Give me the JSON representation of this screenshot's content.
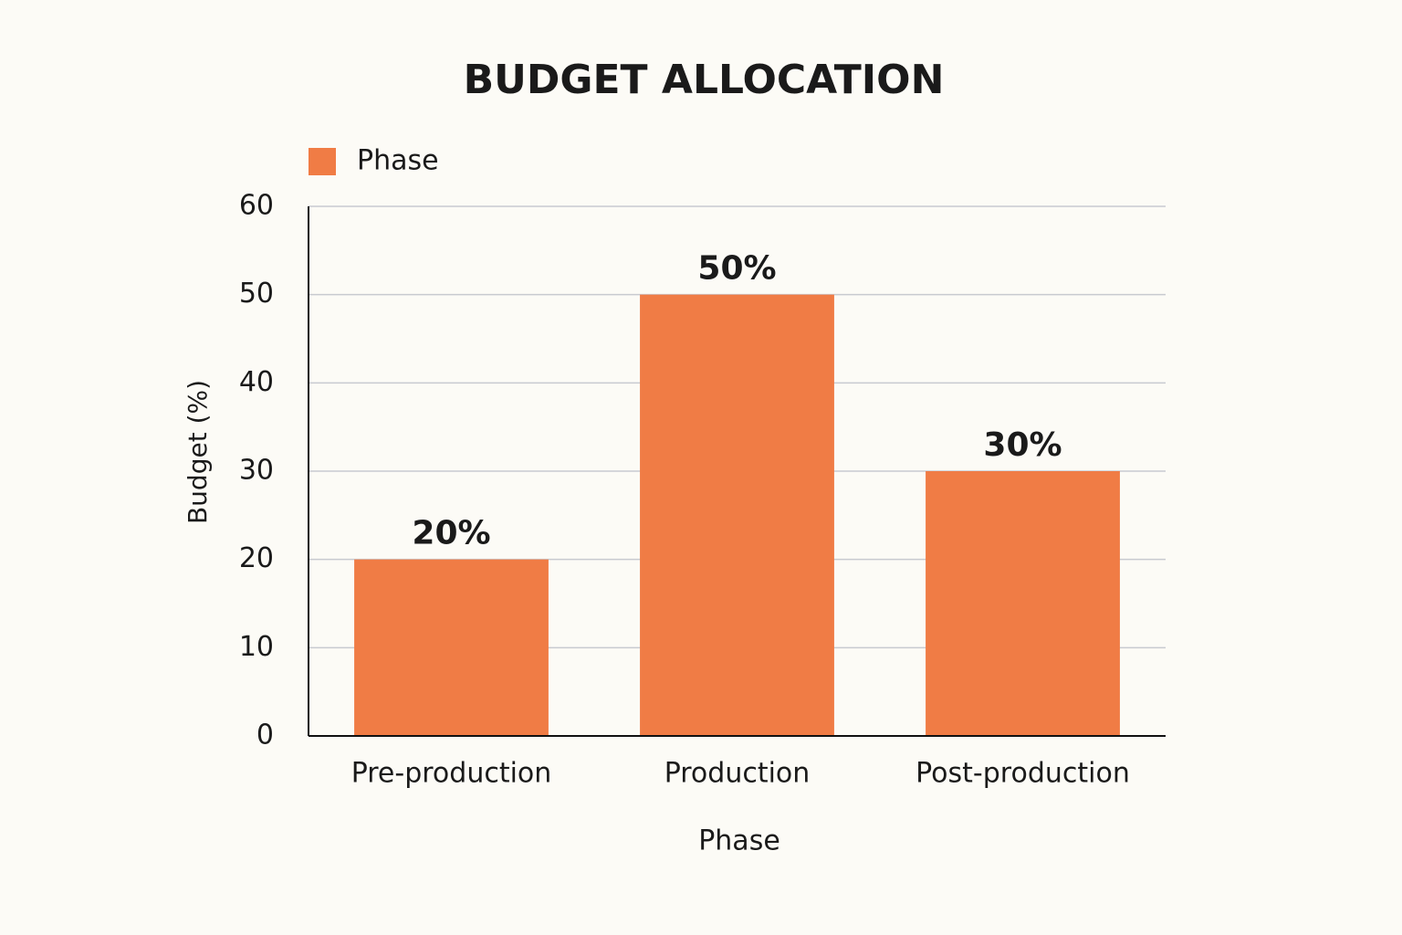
{
  "chart_data": {
    "type": "bar",
    "title": "BUDGET ALLOCATION",
    "x_label": "Phase",
    "y_label": "Budget (%)",
    "categories": [
      "Pre-production",
      "Production",
      "Post-production"
    ],
    "series": [
      {
        "name": "Phase",
        "color": "#f07c45",
        "values": [
          20,
          50,
          30
        ],
        "value_labels": [
          "20%",
          "50%",
          "30%"
        ]
      }
    ],
    "ylim": [
      0,
      60
    ],
    "yticks": [
      0,
      10,
      20,
      30,
      40,
      50,
      60
    ],
    "grid": true,
    "legend": "top-left"
  }
}
